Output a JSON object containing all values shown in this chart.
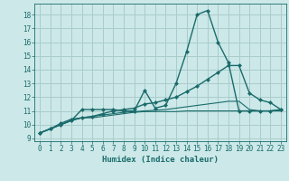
{
  "background_color": "#cce8e8",
  "grid_color": "#aacccc",
  "line_color": "#1a6b6b",
  "xlabel": "Humidex (Indice chaleur)",
  "xlim": [
    -0.5,
    23.5
  ],
  "ylim": [
    8.8,
    18.8
  ],
  "yticks": [
    9,
    10,
    11,
    12,
    13,
    14,
    15,
    16,
    17,
    18
  ],
  "xticks": [
    0,
    1,
    2,
    3,
    4,
    5,
    6,
    7,
    8,
    9,
    10,
    11,
    12,
    13,
    14,
    15,
    16,
    17,
    18,
    19,
    20,
    21,
    22,
    23
  ],
  "series": [
    {
      "x": [
        0,
        1,
        2,
        3,
        4,
        5,
        6,
        7,
        8,
        9,
        10,
        11,
        12,
        13,
        14,
        15,
        16,
        17,
        18,
        19,
        20,
        21,
        22,
        23
      ],
      "y": [
        9.4,
        9.7,
        10.0,
        10.3,
        11.1,
        11.1,
        11.1,
        11.1,
        11.0,
        11.0,
        12.5,
        11.2,
        11.4,
        13.0,
        15.3,
        18.0,
        18.3,
        16.0,
        14.5,
        11.0,
        11.0,
        11.0,
        11.0,
        11.1
      ],
      "marker": "D",
      "markersize": 2.5,
      "linewidth": 1.0
    },
    {
      "x": [
        0,
        1,
        2,
        3,
        4,
        5,
        6,
        7,
        8,
        9,
        10,
        11,
        12,
        13,
        14,
        15,
        16,
        17,
        18,
        19,
        20,
        21,
        22,
        23
      ],
      "y": [
        9.4,
        9.7,
        10.1,
        10.4,
        10.5,
        10.6,
        10.8,
        11.0,
        11.1,
        11.2,
        11.5,
        11.6,
        11.8,
        12.0,
        12.4,
        12.8,
        13.3,
        13.8,
        14.3,
        14.3,
        12.3,
        11.8,
        11.6,
        11.1
      ],
      "marker": "D",
      "markersize": 2.5,
      "linewidth": 1.0
    },
    {
      "x": [
        0,
        1,
        2,
        3,
        4,
        5,
        6,
        7,
        8,
        9,
        10,
        11,
        12,
        13,
        14,
        15,
        16,
        17,
        18,
        19,
        20,
        21,
        22,
        23
      ],
      "y": [
        9.4,
        9.7,
        10.0,
        10.3,
        10.5,
        10.6,
        10.7,
        10.8,
        10.9,
        10.95,
        11.0,
        11.05,
        11.1,
        11.2,
        11.3,
        11.4,
        11.5,
        11.6,
        11.7,
        11.7,
        11.1,
        11.0,
        11.0,
        11.1
      ],
      "marker": null,
      "markersize": 0,
      "linewidth": 0.8
    },
    {
      "x": [
        0,
        1,
        2,
        3,
        4,
        5,
        6,
        7,
        8,
        9,
        10,
        11,
        12,
        13,
        14,
        15,
        16,
        17,
        18,
        19,
        20,
        21,
        22,
        23
      ],
      "y": [
        9.4,
        9.7,
        10.0,
        10.3,
        10.5,
        10.5,
        10.6,
        10.7,
        10.8,
        10.9,
        10.95,
        10.95,
        10.95,
        10.95,
        11.0,
        11.0,
        11.0,
        11.0,
        11.0,
        11.0,
        11.0,
        11.0,
        11.0,
        11.0
      ],
      "marker": null,
      "markersize": 0,
      "linewidth": 0.8
    }
  ]
}
